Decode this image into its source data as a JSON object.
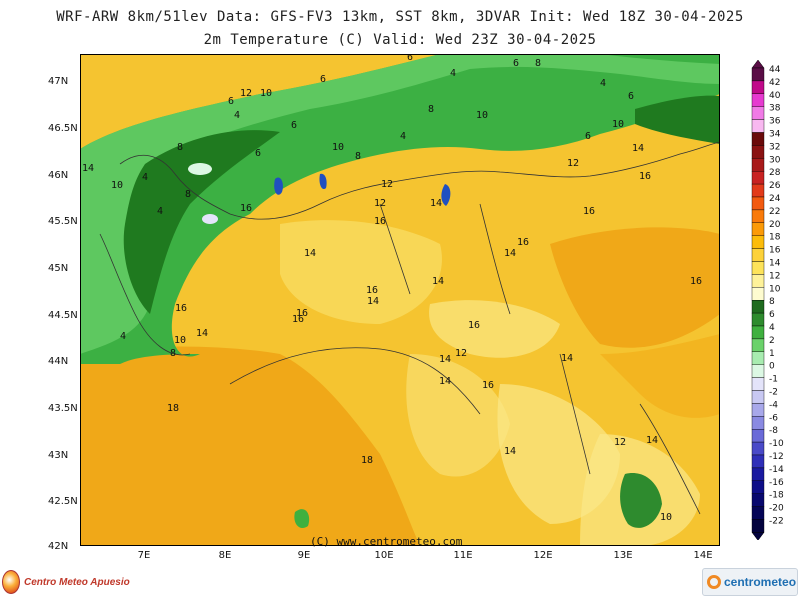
{
  "header": {
    "line1": "WRF-ARW 8km/51lev  Data: GFS-FV3 13km, SST 8km, 3DVAR  Init: Wed 18Z 30-04-2025",
    "line2": "2m Temperature (C)  Valid: Wed 23Z 30-04-2025"
  },
  "map": {
    "latitudes": [
      "47N",
      "46.5N",
      "46N",
      "45.5N",
      "45N",
      "44.5N",
      "44N",
      "43.5N",
      "43N",
      "42.5N",
      "42N"
    ],
    "longitudes": [
      "7E",
      "8E",
      "9E",
      "10E",
      "11E",
      "12E",
      "13E",
      "14E"
    ],
    "credit": "(C) www.centrometeo.com",
    "labels": [
      {
        "t": "6"
      },
      {
        "t": "4"
      },
      {
        "t": "6"
      },
      {
        "t": "8"
      },
      {
        "t": "4"
      },
      {
        "t": "6"
      },
      {
        "t": "6"
      },
      {
        "t": "12"
      },
      {
        "t": "10"
      },
      {
        "t": "6"
      },
      {
        "t": "4"
      },
      {
        "t": "6"
      },
      {
        "t": "10"
      },
      {
        "t": "8"
      },
      {
        "t": "8"
      },
      {
        "t": "4"
      },
      {
        "t": "10"
      },
      {
        "t": "6"
      },
      {
        "t": "10"
      },
      {
        "t": "8"
      },
      {
        "t": "14"
      },
      {
        "t": "12"
      },
      {
        "t": "16"
      },
      {
        "t": "14"
      },
      {
        "t": "6"
      },
      {
        "t": "4"
      },
      {
        "t": "10"
      },
      {
        "t": "8"
      },
      {
        "t": "12"
      },
      {
        "t": "4"
      },
      {
        "t": "16"
      },
      {
        "t": "12"
      },
      {
        "t": "16"
      },
      {
        "t": "14"
      },
      {
        "t": "16"
      },
      {
        "t": "16"
      },
      {
        "t": "14"
      },
      {
        "t": "16"
      },
      {
        "t": "14"
      },
      {
        "t": "16"
      },
      {
        "t": "14"
      },
      {
        "t": "16"
      },
      {
        "t": "14"
      },
      {
        "t": "16"
      },
      {
        "t": "16"
      },
      {
        "t": "4"
      },
      {
        "t": "14"
      },
      {
        "t": "10"
      },
      {
        "t": "8"
      },
      {
        "t": "16"
      },
      {
        "t": "12"
      },
      {
        "t": "14"
      },
      {
        "t": "14"
      },
      {
        "t": "16"
      },
      {
        "t": "14"
      },
      {
        "t": "18"
      },
      {
        "t": "12"
      },
      {
        "t": "14"
      },
      {
        "t": "14"
      },
      {
        "t": "18"
      },
      {
        "t": "10"
      }
    ]
  },
  "colorbar": {
    "levels": [
      "44",
      "42",
      "40",
      "38",
      "36",
      "34",
      "32",
      "30",
      "28",
      "26",
      "24",
      "22",
      "20",
      "18",
      "16",
      "14",
      "12",
      "10",
      "8",
      "6",
      "4",
      "2",
      "1",
      "0",
      "-1",
      "-2",
      "-4",
      "-6",
      "-8",
      "-10",
      "-12",
      "-14",
      "-16",
      "-18",
      "-20",
      "-22"
    ],
    "colors": [
      "#5a0d46",
      "#c00a8a",
      "#e63ad0",
      "#f07ae6",
      "#f8b8f0",
      "#6a0a0a",
      "#8a1212",
      "#a81a1a",
      "#c82222",
      "#e23a1a",
      "#f25a10",
      "#f97a0a",
      "#fb9a08",
      "#fcbc0a",
      "#fdd23a",
      "#fde35a",
      "#fef29a",
      "#fefcd0",
      "#1f6b1f",
      "#2e8b2e",
      "#3fb03f",
      "#6bd26b",
      "#a8ecb0",
      "#dcf8e4",
      "#e4e4fa",
      "#c8c8f2",
      "#a8a8ea",
      "#8a8ae2",
      "#6a6ad8",
      "#4a4ac8",
      "#2f2fb8",
      "#1a1aa0",
      "#0e0e88",
      "#08086e",
      "#050556",
      "#03033e"
    ]
  },
  "branding": {
    "left_logo_text": "Centro Meteo Apuesio",
    "right_logo_text": "centrometeo"
  }
}
